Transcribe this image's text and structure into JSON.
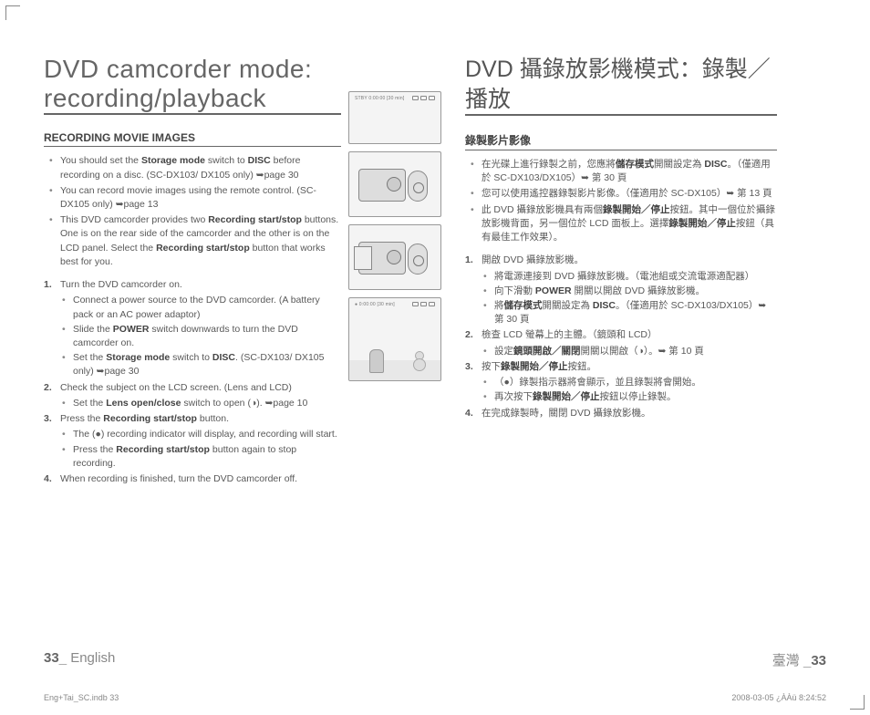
{
  "left": {
    "title": "DVD camcorder mode: recording/playback",
    "section": "RECORDING MOVIE IMAGES",
    "intro": [
      "You should set the <b>Storage mode</b> switch to <b>DISC</b> before recording on a disc. (SC-DX103/ DX105 only) ➥page 30",
      "You can record movie images using the remote control. (SC-DX105 only) ➥page 13",
      "This DVD camcorder provides two <b>Recording start/stop</b> buttons. One is on the rear side of the camcorder and the other is on the LCD panel. Select the <b>Recording start/stop</b> button that works best for you."
    ],
    "steps": [
      {
        "t": "Turn the DVD camcorder on.",
        "sub": [
          "Connect a power source to the DVD camcorder. (A battery pack or an AC power adaptor)",
          "Slide the <b>POWER</b> switch downwards to turn the DVD camcorder on.",
          "Set the <b>Storage mode</b> switch to <b>DISC</b>. (SC-DX103/ DX105 only) ➥page 30"
        ]
      },
      {
        "t": "Check the subject on the LCD screen. (Lens and LCD)",
        "sub": [
          "Set the <b>Lens open/close</b> switch to open (◑). ➥page 10"
        ]
      },
      {
        "t": "Press the <b>Recording start/stop</b> button.",
        "sub": [
          "The (●) recording indicator will display, and recording will start.",
          "Press the <b>Recording start/stop</b> button again to stop recording."
        ]
      },
      {
        "t": "When recording is finished, turn the DVD camcorder off."
      }
    ]
  },
  "right": {
    "title": "DVD 攝錄放影機模式：錄製／播放",
    "section": "錄製影片影像",
    "intro": [
      "在光碟上進行錄製之前，您應將<b>儲存模式</b>開關設定為 <b>DISC</b>。（僅適用於 SC-DX103/DX105）➥ 第 30 頁",
      "您可以使用遙控器錄製影片影像。（僅適用於 SC-DX105）➥ 第 13 頁",
      "此 DVD 攝錄放影機具有兩個<b>錄製開始／停止</b>按鈕。其中一個位於攝錄放影機背面，另一個位於 LCD 面板上。選擇<b>錄製開始／停止</b>按鈕（具有最佳工作效果）。"
    ],
    "steps": [
      {
        "t": "開啟 DVD 攝錄放影機。",
        "sub": [
          "將電源連接到 DVD 攝錄放影機。（電池組或交流電源適配器）",
          "向下滑動 <b>POWER</b> 開關以開啟 DVD 攝錄放影機。",
          "將<b>儲存模式</b>開關設定為 <b>DISC</b>。（僅適用於 SC-DX103/DX105）➥ 第 30 頁"
        ]
      },
      {
        "t": "檢查 LCD 螢幕上的主體。（鏡頭和 LCD）",
        "sub": [
          "設定<b>鏡頭開啟／關閉</b>開關以開啟（◑）。➥ 第 10 頁"
        ]
      },
      {
        "t": "按下<b>錄製開始／停止</b>按鈕。",
        "sub": [
          "（●）錄製指示器將會顯示，並且錄製將會開始。",
          "再次按下<b>錄製開始／停止</b>按鈕以停止錄製。"
        ]
      },
      {
        "t": "在完成錄製時，關閉 DVD 攝錄放影機。"
      }
    ]
  },
  "lcd1": "STBY   0:00:00 [30 min]",
  "lcd2": "●       0:00:00 [30 min]",
  "footer": {
    "left_num": "33",
    "left_sep": "_",
    "left_lang": " English",
    "right_lang": "臺灣 ",
    "right_sep": "_",
    "right_num": "33"
  },
  "meta": {
    "file": "Eng+Tai_SC.indb   33",
    "stamp": "2008-03-05   ¿ÀÀü 8:24:52"
  }
}
